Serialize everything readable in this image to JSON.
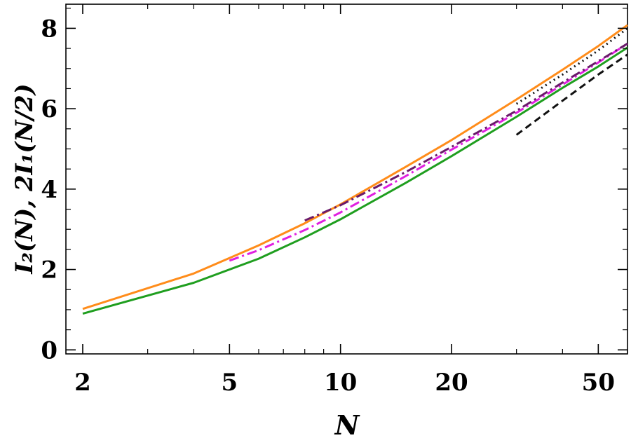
{
  "chart_data": {
    "type": "line",
    "xlabel": "N",
    "ylabel": "I₂(N), 2I₁(N/2)",
    "xscale": "log",
    "xlim": [
      2,
      60
    ],
    "ylim": [
      -0.1,
      8.6
    ],
    "xticks": [
      2,
      5,
      10,
      20,
      50
    ],
    "yticks": [
      0,
      2,
      4,
      6,
      8
    ],
    "grid": false,
    "legend": "none",
    "series": [
      {
        "color": "#ff8c1a",
        "dash": "solid",
        "x": [
          2,
          4,
          6,
          8,
          10,
          15,
          20,
          30,
          40,
          50,
          60
        ],
        "y": [
          1.02,
          1.9,
          2.6,
          3.15,
          3.62,
          4.55,
          5.22,
          6.23,
          6.97,
          7.56,
          8.08
        ]
      },
      {
        "color": "#1f9e1f",
        "dash": "solid",
        "x": [
          2,
          4,
          6,
          8,
          10,
          15,
          20,
          30,
          40,
          50,
          60
        ],
        "y": [
          0.9,
          1.67,
          2.27,
          2.8,
          3.25,
          4.15,
          4.82,
          5.8,
          6.52,
          7.05,
          7.52
        ]
      },
      {
        "color": "#e020e0",
        "dash": "dashdot",
        "x": [
          5,
          6,
          8,
          10,
          15,
          20,
          30,
          40,
          50,
          60
        ],
        "y": [
          2.22,
          2.48,
          2.98,
          3.42,
          4.32,
          4.98,
          5.9,
          6.6,
          7.15,
          7.62
        ]
      },
      {
        "color": "#6a1a6a",
        "dash": "dashdot",
        "x": [
          8,
          10,
          15,
          20,
          30,
          40,
          50,
          60
        ],
        "y": [
          3.22,
          3.6,
          4.42,
          5.05,
          5.95,
          6.65,
          7.18,
          7.62
        ]
      },
      {
        "color": "#111111",
        "dash": "dotted",
        "x": [
          30,
          40,
          50,
          60
        ],
        "y": [
          6.12,
          6.85,
          7.45,
          8.0
        ]
      },
      {
        "color": "#111111",
        "dash": "dashed",
        "x": [
          30,
          40,
          50,
          60
        ],
        "y": [
          5.35,
          6.2,
          6.85,
          7.35
        ]
      }
    ]
  }
}
